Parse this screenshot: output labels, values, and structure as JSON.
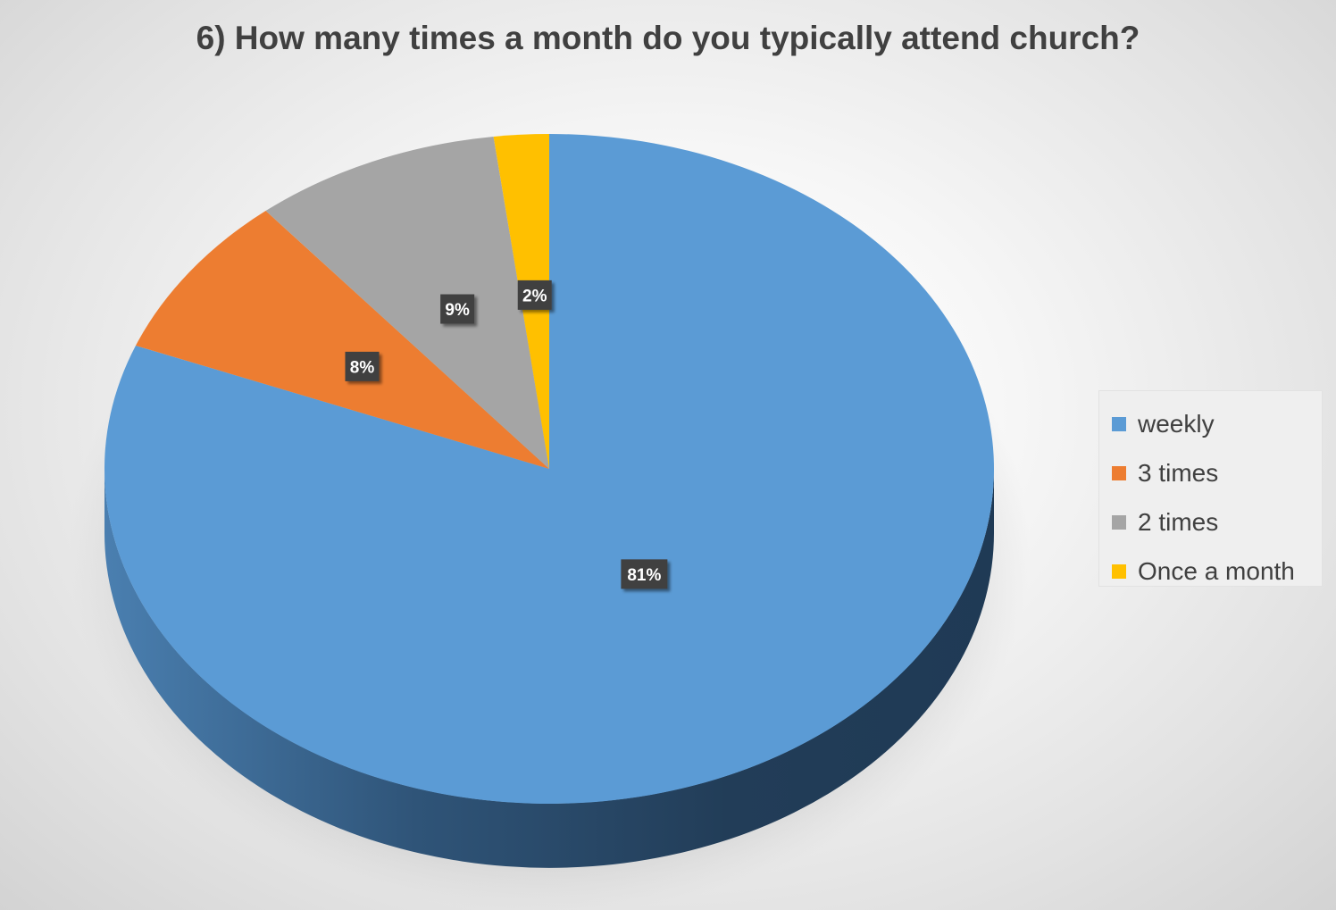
{
  "chart_data": {
    "type": "pie",
    "title": "6) How many times a month do you typically attend church?",
    "categories": [
      "weekly",
      "3 times",
      "2 times",
      "Once a month"
    ],
    "values": [
      81,
      8,
      9,
      2
    ],
    "data_labels": [
      "81%",
      "8%",
      "9%",
      "2%"
    ],
    "colors": [
      "#5b9bd5",
      "#ed7d31",
      "#a5a5a5",
      "#ffc000"
    ],
    "legend_position": "right",
    "style": "3d-pie"
  }
}
